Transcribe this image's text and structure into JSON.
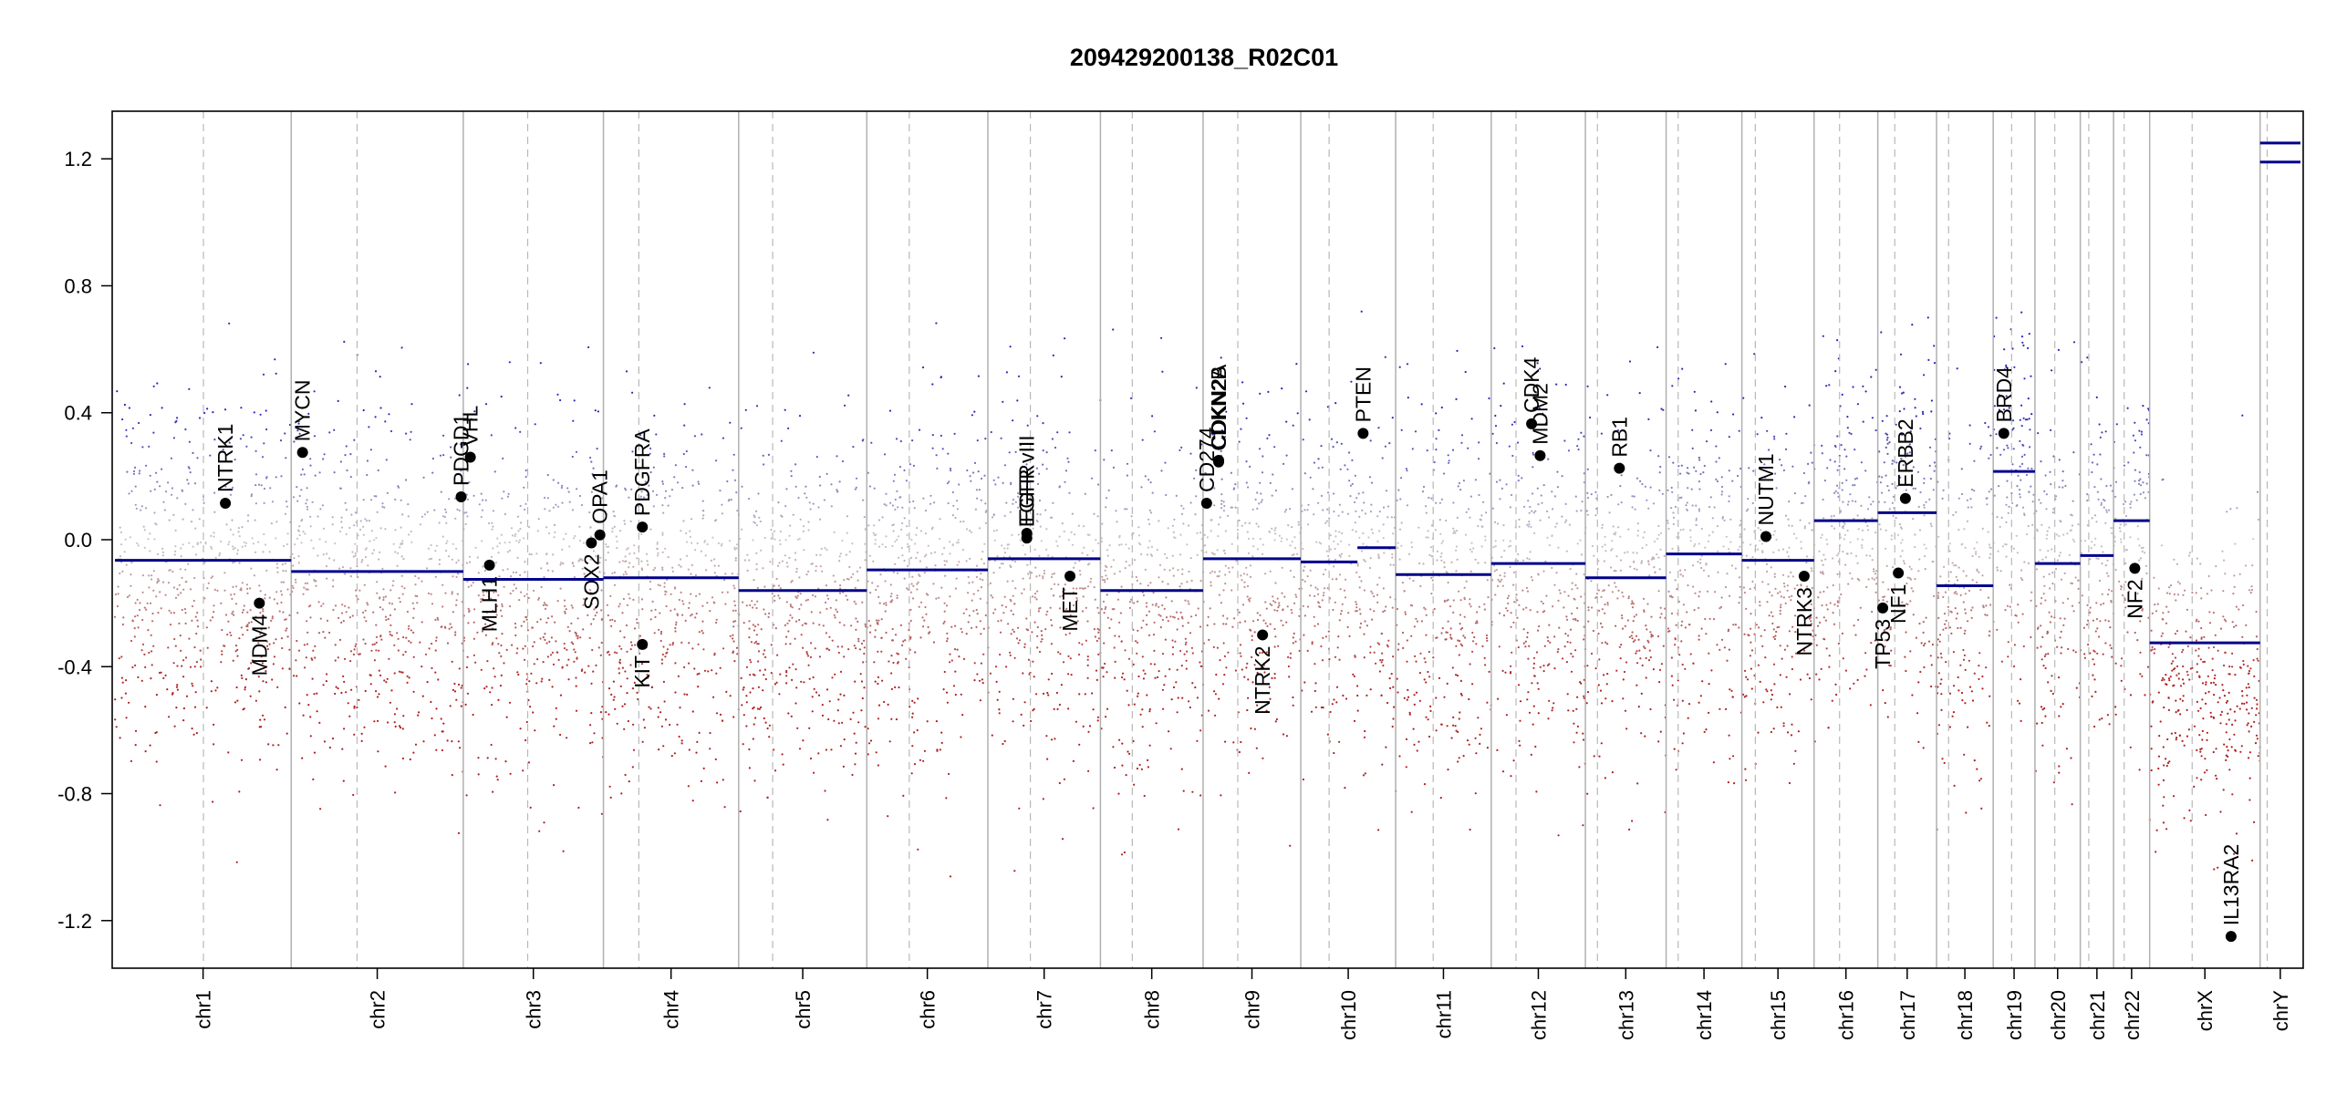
{
  "chart_data": {
    "type": "scatter",
    "title": "209429200138_R02C01",
    "xlabel": "",
    "ylabel": "",
    "ylim": [
      -1.35,
      1.35
    ],
    "yticks": [
      1.2,
      0.8,
      0.4,
      0.0,
      -0.4,
      -0.8,
      -1.2
    ],
    "ytick_labels": [
      "1.2",
      "0.8",
      "0.4",
      "0.0",
      "-0.4",
      "-0.8",
      "-1.2"
    ],
    "grid": false,
    "chromosomes": [
      {
        "name": "chr1",
        "size": 249,
        "centromere": 125
      },
      {
        "name": "chr2",
        "size": 243,
        "centromere": 93
      },
      {
        "name": "chr3",
        "size": 198,
        "centromere": 91
      },
      {
        "name": "chr4",
        "size": 191,
        "centromere": 50
      },
      {
        "name": "chr5",
        "size": 181,
        "centromere": 48
      },
      {
        "name": "chr6",
        "size": 171,
        "centromere": 60
      },
      {
        "name": "chr7",
        "size": 159,
        "centromere": 60
      },
      {
        "name": "chr8",
        "size": 145,
        "centromere": 45
      },
      {
        "name": "chr9",
        "size": 138,
        "centromere": 49
      },
      {
        "name": "chr10",
        "size": 134,
        "centromere": 40
      },
      {
        "name": "chr11",
        "size": 135,
        "centromere": 53
      },
      {
        "name": "chr12",
        "size": 133,
        "centromere": 35
      },
      {
        "name": "chr13",
        "size": 114,
        "centromere": 17
      },
      {
        "name": "chr14",
        "size": 107,
        "centromere": 17
      },
      {
        "name": "chr15",
        "size": 102,
        "centromere": 19
      },
      {
        "name": "chr16",
        "size": 90,
        "centromere": 36
      },
      {
        "name": "chr17",
        "size": 83,
        "centromere": 24
      },
      {
        "name": "chr18",
        "size": 80,
        "centromere": 17
      },
      {
        "name": "chr19",
        "size": 59,
        "centromere": 26
      },
      {
        "name": "chr20",
        "size": 64,
        "centromere": 28
      },
      {
        "name": "chr21",
        "size": 47,
        "centromere": 12
      },
      {
        "name": "chr22",
        "size": 51,
        "centromere": 15
      },
      {
        "name": "chrX",
        "size": 156,
        "centromere": 60
      },
      {
        "name": "chrY",
        "size": 57,
        "centromere": 10
      }
    ],
    "segments": [
      {
        "chr": "chr1",
        "start": 0,
        "end": 249,
        "value": -0.065
      },
      {
        "chr": "chr2",
        "start": 0,
        "end": 243,
        "value": -0.1
      },
      {
        "chr": "chr3",
        "start": 0,
        "end": 198,
        "value": -0.125
      },
      {
        "chr": "chr4",
        "start": 0,
        "end": 191,
        "value": -0.12
      },
      {
        "chr": "chr5",
        "start": 0,
        "end": 181,
        "value": -0.16
      },
      {
        "chr": "chr6",
        "start": 0,
        "end": 171,
        "value": -0.095
      },
      {
        "chr": "chr7",
        "start": 0,
        "end": 159,
        "value": -0.06
      },
      {
        "chr": "chr8",
        "start": 0,
        "end": 145,
        "value": -0.16
      },
      {
        "chr": "chr9",
        "start": 0,
        "end": 138,
        "value": -0.06
      },
      {
        "chr": "chr10",
        "start": 0,
        "end": 80,
        "value": -0.07
      },
      {
        "chr": "chr10",
        "start": 80,
        "end": 134,
        "value": -0.025
      },
      {
        "chr": "chr11",
        "start": 0,
        "end": 135,
        "value": -0.11
      },
      {
        "chr": "chr12",
        "start": 0,
        "end": 133,
        "value": -0.075
      },
      {
        "chr": "chr13",
        "start": 0,
        "end": 114,
        "value": -0.12
      },
      {
        "chr": "chr14",
        "start": 0,
        "end": 107,
        "value": -0.045
      },
      {
        "chr": "chr15",
        "start": 0,
        "end": 102,
        "value": -0.065
      },
      {
        "chr": "chr16",
        "start": 0,
        "end": 90,
        "value": 0.06
      },
      {
        "chr": "chr17",
        "start": 0,
        "end": 83,
        "value": 0.085
      },
      {
        "chr": "chr18",
        "start": 0,
        "end": 80,
        "value": -0.145
      },
      {
        "chr": "chr19",
        "start": 0,
        "end": 59,
        "value": 0.215
      },
      {
        "chr": "chr20",
        "start": 0,
        "end": 64,
        "value": -0.075
      },
      {
        "chr": "chr21",
        "start": 0,
        "end": 47,
        "value": -0.05
      },
      {
        "chr": "chr22",
        "start": 0,
        "end": 51,
        "value": 0.06
      },
      {
        "chr": "chrX",
        "start": 0,
        "end": 156,
        "value": -0.325
      },
      {
        "chr": "chrY",
        "start": 0,
        "end": 57,
        "value": 1.25
      },
      {
        "chr": "chrY",
        "start": 0,
        "end": 57,
        "value": 1.19
      }
    ],
    "genes": [
      {
        "name": "NTRK1",
        "chr": "chr1",
        "pos": 156,
        "value": 0.115,
        "label_side": "above"
      },
      {
        "name": "MDM4",
        "chr": "chr1",
        "pos": 204,
        "value": -0.2,
        "label_side": "below"
      },
      {
        "name": "MYCN",
        "chr": "chr2",
        "pos": 16,
        "value": 0.275,
        "label_side": "above"
      },
      {
        "name": "PDGD1",
        "chr": "chr2",
        "pos": 240,
        "value": 0.135,
        "label_side": "above"
      },
      {
        "name": "VHL",
        "chr": "chr3",
        "pos": 10,
        "value": 0.26,
        "label_side": "above"
      },
      {
        "name": "MLH1",
        "chr": "chr3",
        "pos": 37,
        "value": -0.08,
        "label_side": "below"
      },
      {
        "name": "SOX2",
        "chr": "chr3",
        "pos": 181,
        "value": -0.01,
        "label_side": "below"
      },
      {
        "name": "OPA1",
        "chr": "chr3",
        "pos": 193,
        "value": 0.015,
        "label_side": "above"
      },
      {
        "name": "PDGFRA",
        "chr": "chr4",
        "pos": 55,
        "value": 0.04,
        "label_side": "above"
      },
      {
        "name": "KIT",
        "chr": "chr4",
        "pos": 55,
        "value": -0.33,
        "label_side": "below"
      },
      {
        "name": "EGFR",
        "chr": "chr7",
        "pos": 55,
        "value": 0.02,
        "label_side": "above"
      },
      {
        "name": "EGFR vIII",
        "chr": "chr7",
        "pos": 55,
        "value": 0.005,
        "label_side": "above"
      },
      {
        "name": "MET",
        "chr": "chr7",
        "pos": 116,
        "value": -0.115,
        "label_side": "below"
      },
      {
        "name": "CD274",
        "chr": "chr9",
        "pos": 5,
        "value": 0.115,
        "label_side": "above"
      },
      {
        "name": "CDKN2A",
        "chr": "chr9",
        "pos": 22,
        "value": 0.25,
        "label_side": "above"
      },
      {
        "name": "CDKN2B",
        "chr": "chr9",
        "pos": 22,
        "value": 0.245,
        "label_side": "above"
      },
      {
        "name": "NTRK2",
        "chr": "chr9",
        "pos": 84,
        "value": -0.3,
        "label_side": "below"
      },
      {
        "name": "PTEN",
        "chr": "chr10",
        "pos": 88,
        "value": 0.335,
        "label_side": "above"
      },
      {
        "name": "CDK4",
        "chr": "chr12",
        "pos": 57,
        "value": 0.365,
        "label_side": "above"
      },
      {
        "name": "MDM2",
        "chr": "chr12",
        "pos": 69,
        "value": 0.265,
        "label_side": "above"
      },
      {
        "name": "RB1",
        "chr": "chr13",
        "pos": 48,
        "value": 0.225,
        "label_side": "above"
      },
      {
        "name": "NUTM1",
        "chr": "chr15",
        "pos": 34,
        "value": 0.01,
        "label_side": "above"
      },
      {
        "name": "NTRK3",
        "chr": "chr15",
        "pos": 88,
        "value": -0.115,
        "label_side": "below"
      },
      {
        "name": "TP53",
        "chr": "chr17",
        "pos": 7,
        "value": -0.215,
        "label_side": "below"
      },
      {
        "name": "NF1",
        "chr": "chr17",
        "pos": 29,
        "value": -0.105,
        "label_side": "below"
      },
      {
        "name": "ERBB2",
        "chr": "chr17",
        "pos": 39,
        "value": 0.13,
        "label_side": "above"
      },
      {
        "name": "BRD4",
        "chr": "chr19",
        "pos": 15,
        "value": 0.335,
        "label_side": "above"
      },
      {
        "name": "NF2",
        "chr": "chr22",
        "pos": 30,
        "value": -0.09,
        "label_side": "below"
      },
      {
        "name": "IL13RA2",
        "chr": "chrX",
        "pos": 115,
        "value": -1.25,
        "label_side": "above"
      }
    ],
    "probe_colors": {
      "gain": "#2a2ab4",
      "neutral": "#c8c8c8",
      "loss": "#b02020"
    },
    "segment_color": "#00008b"
  }
}
